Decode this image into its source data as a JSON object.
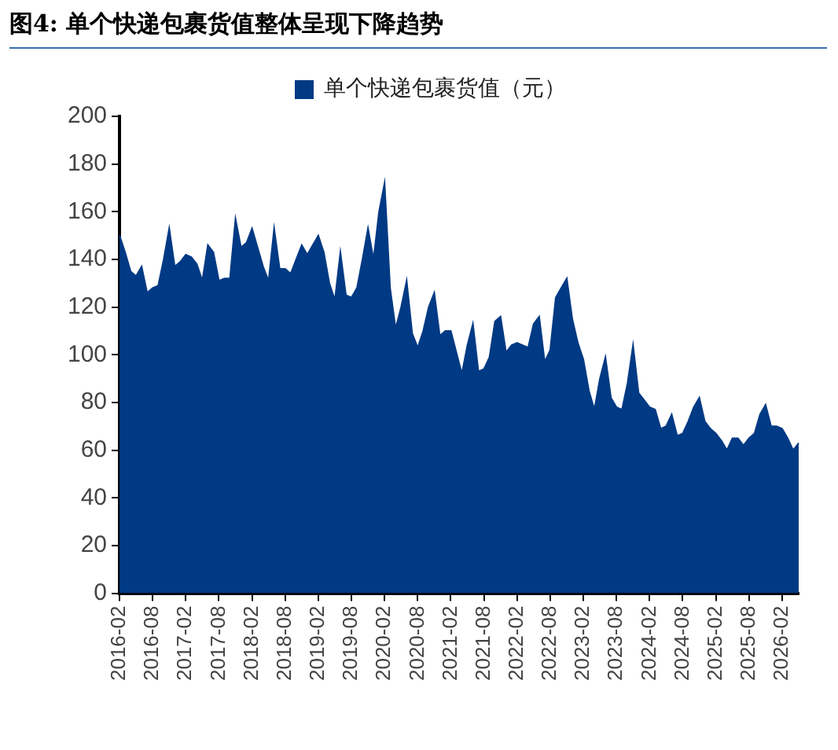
{
  "chart_data": {
    "type": "area",
    "title": "图4: 单个快递包裹货值整体呈现下降趋势",
    "categories": [
      "2016-02",
      null,
      null,
      null,
      null,
      null,
      "2016-08",
      null,
      null,
      null,
      null,
      null,
      "2017-02",
      null,
      null,
      null,
      null,
      null,
      "2017-08",
      null,
      null,
      null,
      null,
      null,
      "2018-02",
      null,
      null,
      null,
      null,
      null,
      "2018-08",
      null,
      null,
      null,
      null,
      null,
      "2019-02",
      null,
      null,
      null,
      null,
      null,
      "2019-08",
      null,
      null,
      null,
      null,
      null,
      "2020-02",
      null,
      null,
      null,
      null,
      null,
      "2020-08",
      null,
      null,
      null,
      null,
      null,
      "2021-02",
      null,
      null,
      null,
      null,
      null,
      "2021-08",
      null,
      null,
      null,
      null,
      null,
      "2022-02",
      null,
      null,
      null,
      null,
      null,
      "2022-08",
      null,
      null,
      null,
      null,
      null,
      "2023-02",
      null,
      null,
      null,
      null,
      null,
      "2023-08",
      null,
      null,
      null,
      null,
      null,
      "2024-02",
      null,
      null,
      null,
      null,
      null,
      "2024-08",
      null,
      null,
      null,
      null,
      null,
      "2025-02",
      null,
      null,
      null,
      null,
      null,
      "2025-08",
      null,
      null,
      null,
      null,
      null,
      "2026-02",
      null,
      null,
      null
    ],
    "series": [
      {
        "name": "单个快递包裹货值（元）",
        "color": "#003a84",
        "values": [
          150,
          143,
          135,
          133,
          137,
          126,
          128,
          129,
          140,
          153,
          137,
          139,
          142,
          141,
          138,
          131,
          146,
          143,
          131,
          132,
          132,
          157,
          145,
          147,
          153,
          145,
          137,
          131,
          153,
          136,
          136,
          134,
          140,
          146,
          142,
          146,
          150,
          143,
          130,
          123,
          143,
          125,
          124,
          128,
          140,
          153,
          140,
          160,
          172,
          128,
          111,
          120,
          131,
          109,
          103,
          110,
          120,
          126,
          108,
          110,
          110,
          101,
          92,
          104,
          113,
          93,
          94,
          99,
          114,
          116,
          101,
          104,
          105,
          104,
          103,
          113,
          116,
          97,
          102,
          124,
          128,
          132,
          115,
          105,
          98,
          85,
          77,
          90,
          99,
          82,
          78,
          77,
          88,
          104,
          84,
          81,
          78,
          77,
          69,
          70,
          75,
          66,
          67,
          72,
          78,
          82,
          72,
          69,
          67,
          64,
          60,
          65,
          65,
          62,
          65,
          67,
          75,
          79,
          70,
          70,
          69,
          65,
          60,
          63
        ]
      }
    ],
    "ylim": [
      0,
      200
    ],
    "yticks": [
      0,
      20,
      40,
      60,
      80,
      100,
      120,
      140,
      160,
      180,
      200
    ],
    "grid": false,
    "legend": "top"
  }
}
